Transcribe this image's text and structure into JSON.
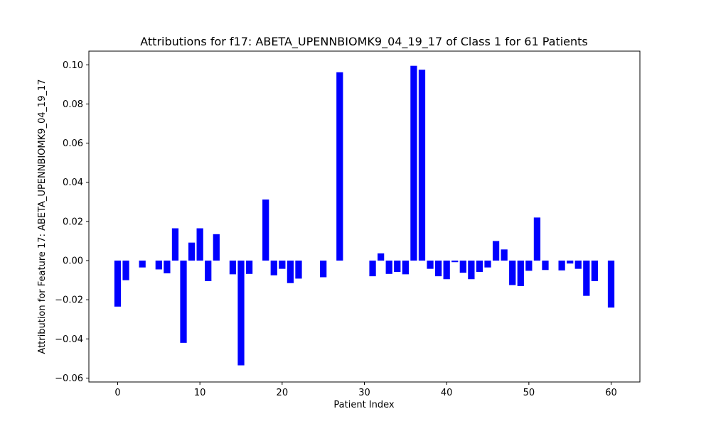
{
  "chart_data": {
    "type": "bar",
    "title": "Attributions for f17: ABETA_UPENNBIOMK9_04_19_17 of Class 1 for 61 Patients",
    "xlabel": "Patient Index",
    "ylabel": "Attribution for Feature 17: ABETA_UPENNBIOMK9_04_19_17",
    "bar_color": "#0000ff",
    "xlim": [
      -3.5,
      63.5
    ],
    "ylim": [
      -0.062,
      0.107
    ],
    "xticks": [
      0,
      10,
      20,
      30,
      40,
      50,
      60
    ],
    "yticks": [
      -0.06,
      -0.04,
      -0.02,
      0.0,
      0.02,
      0.04,
      0.06,
      0.08,
      0.1
    ],
    "ytick_labels": [
      "−0.06",
      "−0.04",
      "−0.02",
      "0.00",
      "0.02",
      "0.04",
      "0.06",
      "0.08",
      "0.10"
    ],
    "grid": false,
    "x": [
      0,
      1,
      2,
      3,
      4,
      5,
      6,
      7,
      8,
      9,
      10,
      11,
      12,
      13,
      14,
      15,
      16,
      17,
      18,
      19,
      20,
      21,
      22,
      23,
      24,
      25,
      26,
      27,
      28,
      29,
      30,
      31,
      32,
      33,
      34,
      35,
      36,
      37,
      38,
      39,
      40,
      41,
      42,
      43,
      44,
      45,
      46,
      47,
      48,
      49,
      50,
      51,
      52,
      53,
      54,
      55,
      56,
      57,
      58,
      59,
      60
    ],
    "values": [
      -0.0235,
      -0.01,
      0.0,
      -0.0035,
      0.0,
      -0.0045,
      -0.0065,
      0.0165,
      -0.042,
      0.0092,
      0.0165,
      -0.0105,
      0.0135,
      0.0,
      -0.007,
      -0.0535,
      -0.0068,
      0.0,
      0.0312,
      -0.0075,
      -0.0042,
      -0.0115,
      -0.0092,
      0.0,
      0.0,
      -0.0085,
      0.0,
      0.0962,
      0.0,
      0.0,
      0.0,
      -0.008,
      0.0037,
      -0.0068,
      -0.0058,
      -0.007,
      0.0995,
      0.0975,
      -0.0042,
      -0.008,
      -0.0095,
      -0.0008,
      -0.0062,
      -0.0095,
      -0.0058,
      -0.0035,
      0.01,
      0.0057,
      -0.0125,
      -0.013,
      -0.0052,
      0.022,
      -0.0048,
      0.0,
      -0.005,
      -0.0015,
      -0.0042,
      -0.018,
      -0.0105,
      0.0,
      -0.024
    ]
  }
}
